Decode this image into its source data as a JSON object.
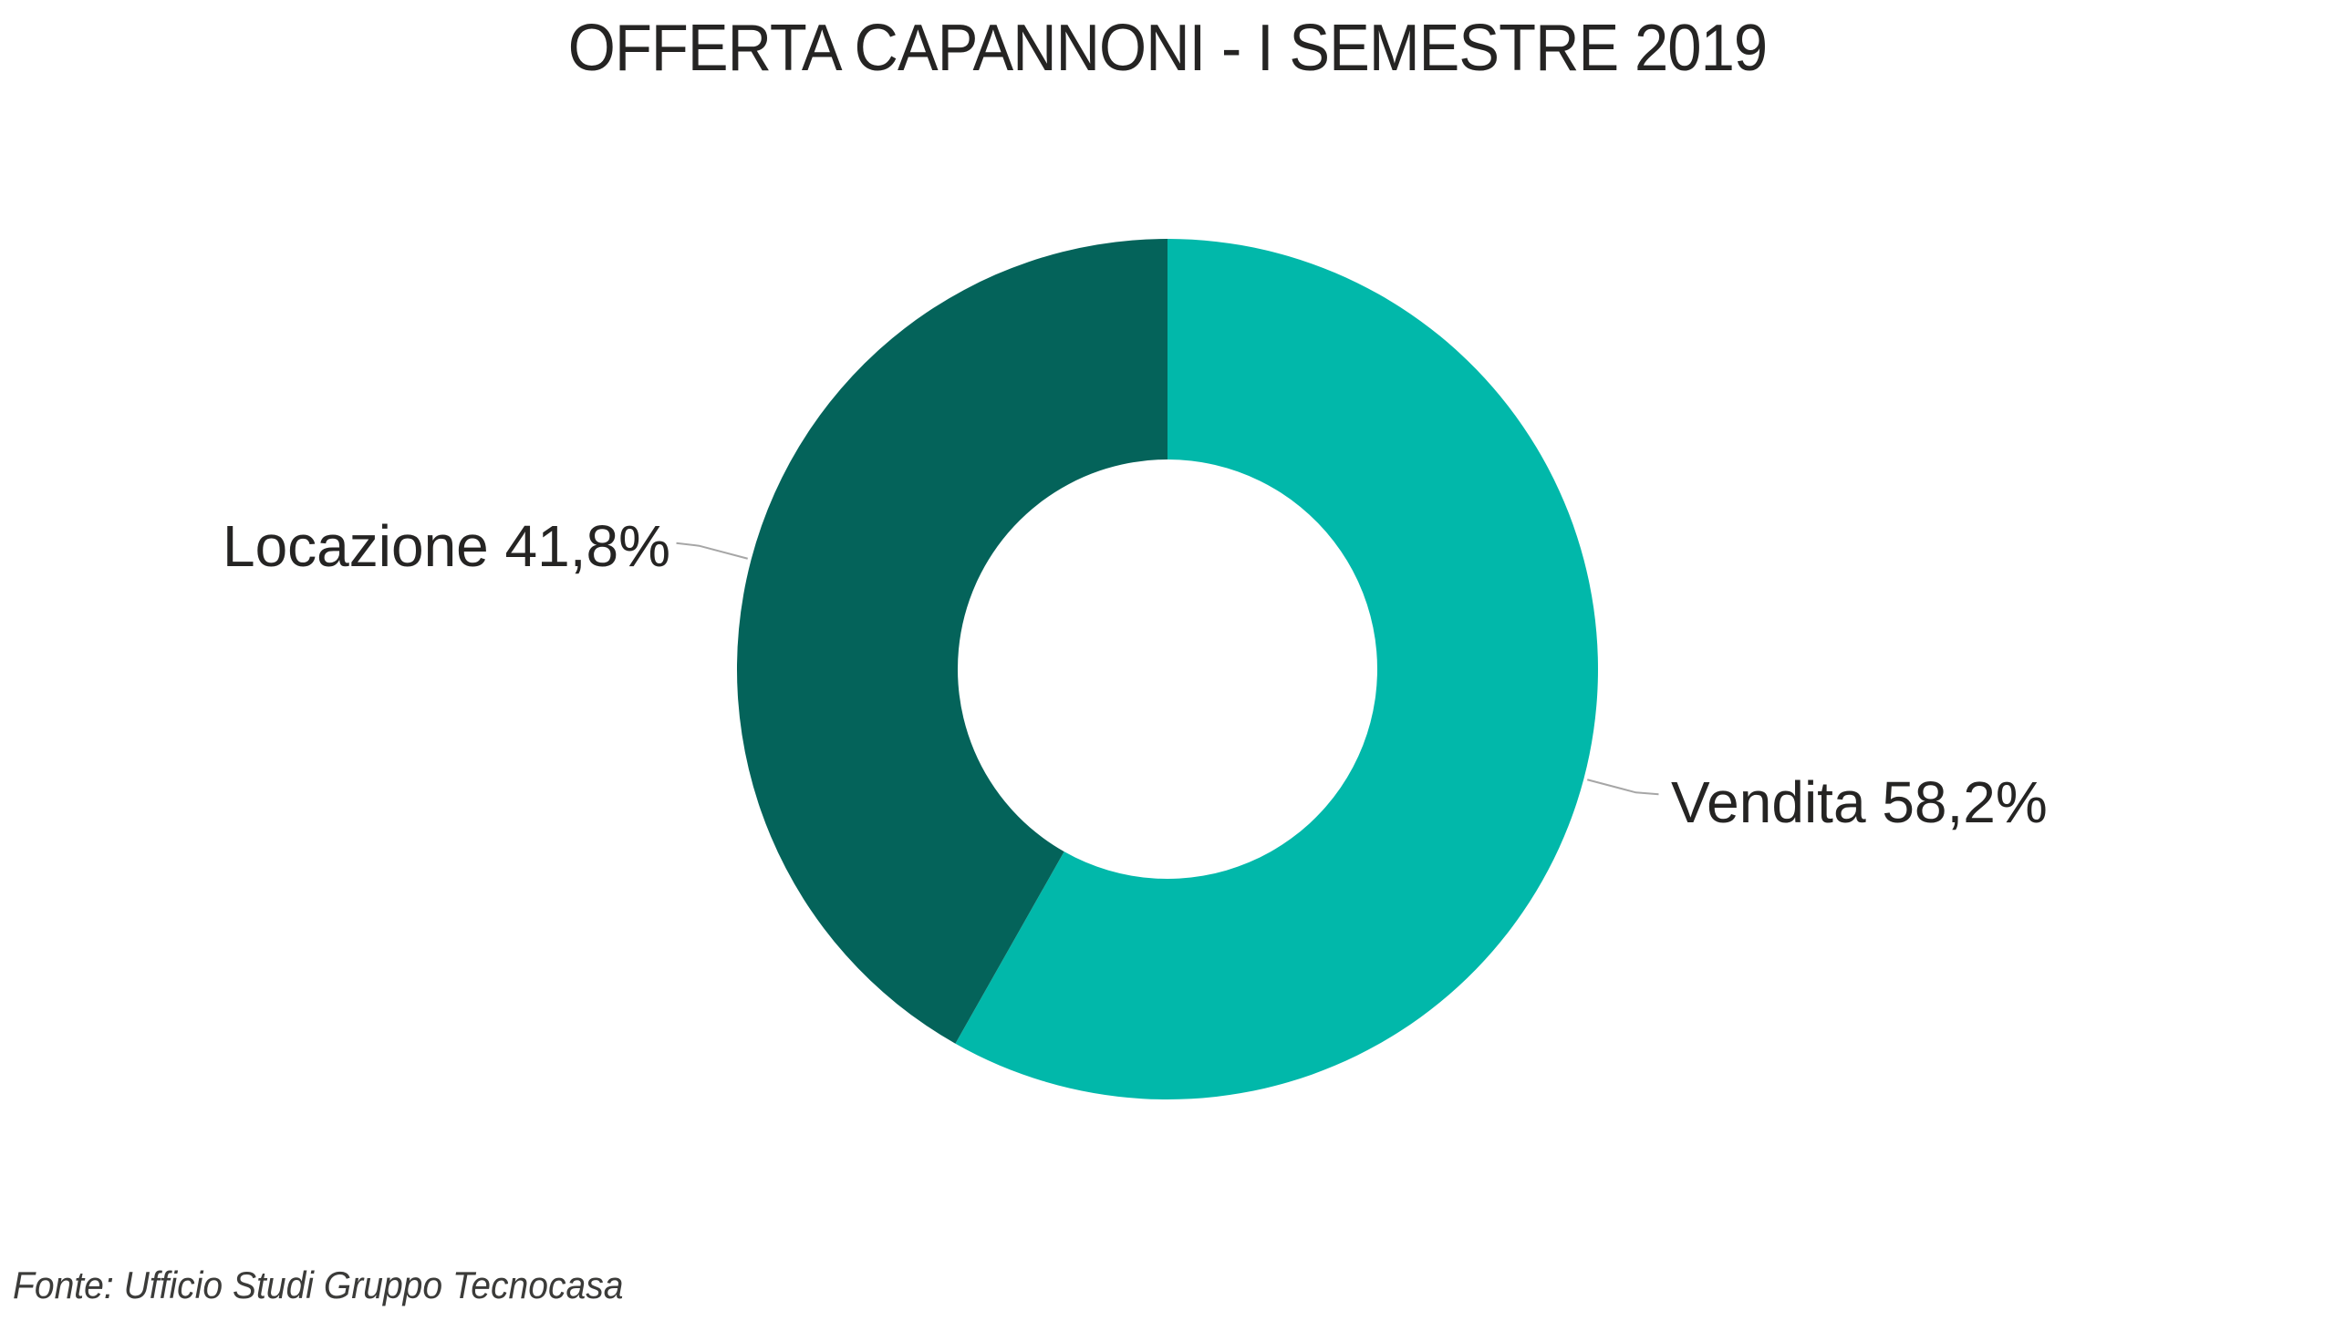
{
  "title": "OFFERTA CAPANNONI - I SEMESTRE 2019",
  "source_note": "Fonte: Ufficio Studi Gruppo Tecnocasa",
  "chart_data": {
    "type": "pie",
    "subtype": "donut",
    "title": "OFFERTA CAPANNONI - I SEMESTRE 2019",
    "categories": [
      "Vendita",
      "Locazione"
    ],
    "values": [
      58.2,
      41.8
    ],
    "slices": [
      {
        "label": "Vendita",
        "value": 58.2,
        "display": "Vendita 58,2%",
        "color": "#01B8AA"
      },
      {
        "label": "Locazione",
        "value": 41.8,
        "display": "Locazione 41,8%",
        "color": "#04635A"
      }
    ],
    "start_angle_deg": 0,
    "direction": "clockwise",
    "legend": "none",
    "data_labels": "outside-with-leader-lines",
    "leader_line_color": "#A6A6A6",
    "hole_color": "#FFFFFF",
    "source": "Fonte: Ufficio Studi Gruppo Tecnocasa"
  }
}
